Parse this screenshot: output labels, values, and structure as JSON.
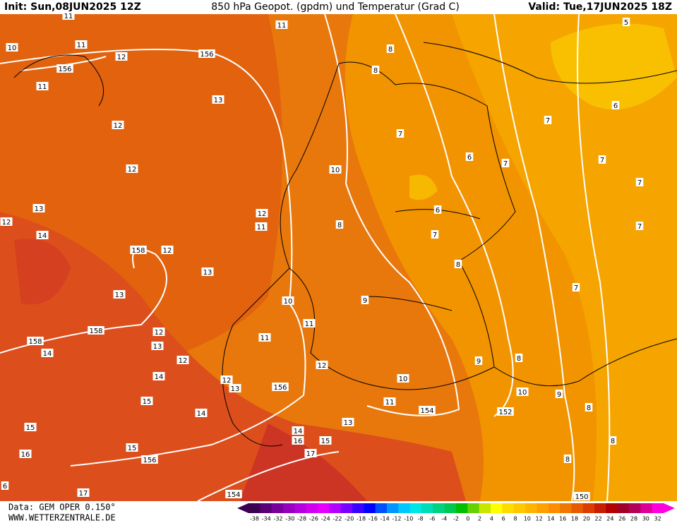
{
  "header": {
    "init": "Init: Sun,08JUN2025 12Z",
    "title": "850 hPa Geopot. (gpdm) und Temperatur (Grad C)",
    "valid": "Valid: Tue,17JUN2025 18Z"
  },
  "footer": {
    "data": "Data: GEM OPER 0.150°",
    "website": "WWW.WETTERZENTRALE.DE"
  },
  "map_labels": [
    11,
    10,
    11,
    12,
    156,
    156,
    11,
    11,
    8,
    8,
    13,
    12,
    12,
    7,
    6,
    10,
    13,
    12,
    14,
    12,
    11,
    6,
    7,
    8,
    158,
    12,
    13,
    8,
    13,
    10,
    9,
    158,
    12,
    11,
    11,
    158,
    14,
    13,
    12,
    12,
    9,
    8,
    14,
    12,
    13,
    156,
    10,
    10,
    9,
    15,
    11,
    154,
    152,
    14,
    8,
    15,
    14,
    13,
    16,
    15,
    15,
    16,
    156,
    17,
    8,
    8,
    6,
    17,
    154,
    150,
    5,
    6,
    7,
    7,
    7,
    7,
    7,
    7
  ],
  "legend": {
    "ticks": [
      -38,
      -34,
      -32,
      -30,
      -28,
      -26,
      -24,
      -22,
      -20,
      -18,
      -16,
      -14,
      -12,
      -10,
      -8,
      -6,
      -4,
      -2,
      0,
      2,
      4,
      6,
      8,
      10,
      12,
      14,
      16,
      18,
      20,
      22,
      24,
      26,
      28,
      30,
      32
    ],
    "colors": [
      "#3c0050",
      "#5a0078",
      "#78009b",
      "#9600be",
      "#b400dc",
      "#d200f0",
      "#e600ff",
      "#b400ff",
      "#7800ff",
      "#3c00ff",
      "#0000ff",
      "#0050ff",
      "#0096ff",
      "#00c8ff",
      "#00e6e6",
      "#00dcb4",
      "#00d282",
      "#00c850",
      "#00be00",
      "#64d200",
      "#c8e600",
      "#ffff00",
      "#ffdc00",
      "#ffc800",
      "#ffb400",
      "#ffa000",
      "#ff8c00",
      "#f07800",
      "#e65a00",
      "#dc3c00",
      "#c81e00",
      "#b40000",
      "#a00028",
      "#b4005a",
      "#dc0096",
      "#ff00dc"
    ]
  }
}
